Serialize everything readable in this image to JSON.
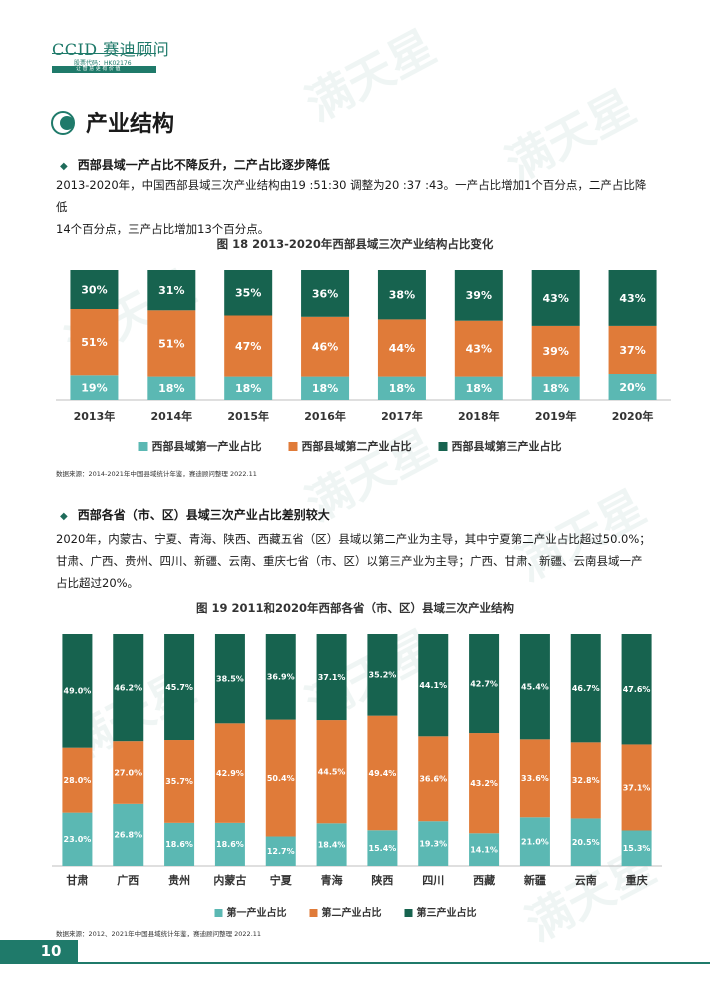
{
  "header": {
    "logo_text": "CCID 赛迪顾问",
    "stock_code": "股票代码：HK02176",
    "slogan": "让 智 慧 更 有 价 值"
  },
  "watermark": "满天星",
  "section_title": "产业结构",
  "section1": {
    "bullet": "西部县域一产占比不降反升，二产占比逐步降低",
    "para_line1": "2013-2020年，中国西部县域三次产业结构由19 :51:30 调整为20 :37 :43。一产占比增加1个百分点，二产占比降低",
    "para_line2": "14个百分点，三产占比增加13个百分点。"
  },
  "fig18": {
    "title": "图 18  2013-2020年西部县域三次产业结构占比变化",
    "source": "数据来源：2014-2021年中国县域统计年鉴，赛迪顾问整理  2022.11"
  },
  "section2": {
    "bullet": "西部各省（市、区）县域三次产业占比差别较大",
    "para_line1": "2020年，内蒙古、宁夏、青海、陕西、西藏五省（区）县域以第二产业为主导，其中宁夏第二产业占比超过50.0%；",
    "para_line2": "甘肃、广西、贵州、四川、新疆、云南、重庆七省（市、区）以第三产业为主导；广西、甘肃、新疆、云南县域一产",
    "para_line3": "占比超过20%。"
  },
  "fig19": {
    "title": "图 19  2011和2020年西部各省（市、区）县域三次产业结构",
    "source": "数据来源：2012、2021年中国县域统计年鉴，赛迪顾问整理  2022.11"
  },
  "page_number": "10",
  "colors": {
    "primary": "#5bb8b3",
    "secondary": "#e07b39",
    "tertiary": "#17634f",
    "brand": "#1f7a6a"
  },
  "chart_data": [
    {
      "type": "bar",
      "stacked": true,
      "categories": [
        "2013年",
        "2014年",
        "2015年",
        "2016年",
        "2017年",
        "2018年",
        "2019年",
        "2020年"
      ],
      "series": [
        {
          "name": "西部县域第一产业占比",
          "values": [
            19,
            18,
            18,
            18,
            18,
            18,
            18,
            20
          ],
          "labels": [
            "19%",
            "18%",
            "18%",
            "18%",
            "18%",
            "18%",
            "18%",
            "20%"
          ]
        },
        {
          "name": "西部县域第二产业占比",
          "values": [
            51,
            51,
            47,
            46,
            44,
            43,
            39,
            37
          ],
          "labels": [
            "51%",
            "51%",
            "47%",
            "46%",
            "44%",
            "43%",
            "39%",
            "37%"
          ]
        },
        {
          "name": "西部县域第三产业占比",
          "values": [
            30,
            31,
            35,
            36,
            38,
            39,
            43,
            43
          ],
          "labels": [
            "30%",
            "31%",
            "35%",
            "36%",
            "38%",
            "39%",
            "43%",
            "43%"
          ]
        }
      ],
      "ylim": [
        0,
        100
      ],
      "legend": "bottom"
    },
    {
      "type": "bar",
      "stacked": true,
      "categories": [
        "甘肃",
        "广西",
        "贵州",
        "内蒙古",
        "宁夏",
        "青海",
        "陕西",
        "四川",
        "西藏",
        "新疆",
        "云南",
        "重庆"
      ],
      "series": [
        {
          "name": "第一产业占比",
          "values": [
            23.0,
            26.8,
            18.6,
            18.6,
            12.7,
            18.4,
            15.4,
            19.3,
            14.1,
            21.0,
            20.5,
            15.3
          ],
          "labels": [
            "23.0%",
            "26.8%",
            "18.6%",
            "18.6%",
            "12.7%",
            "18.4%",
            "15.4%",
            "19.3%",
            "14.1%",
            "21.0%",
            "20.5%",
            "15.3%"
          ]
        },
        {
          "name": "第二产业占比",
          "values": [
            28.0,
            27.0,
            35.7,
            42.9,
            50.4,
            44.5,
            49.4,
            36.6,
            43.2,
            33.6,
            32.8,
            37.1
          ],
          "labels": [
            "28.0%",
            "27.0%",
            "35.7%",
            "42.9%",
            "50.4%",
            "44.5%",
            "49.4%",
            "36.6%",
            "43.2%",
            "33.6%",
            "32.8%",
            "37.1%"
          ]
        },
        {
          "name": "第三产业占比",
          "values": [
            49.0,
            46.2,
            45.7,
            38.5,
            36.9,
            37.1,
            35.2,
            44.1,
            42.7,
            45.4,
            46.7,
            47.6
          ],
          "labels": [
            "49.0%",
            "46.2%",
            "45.7%",
            "38.5%",
            "36.9%",
            "37.1%",
            "35.2%",
            "44.1%",
            "42.7%",
            "45.4%",
            "46.7%",
            "47.6%"
          ]
        }
      ],
      "ylim": [
        0,
        100
      ],
      "legend": "bottom"
    }
  ]
}
